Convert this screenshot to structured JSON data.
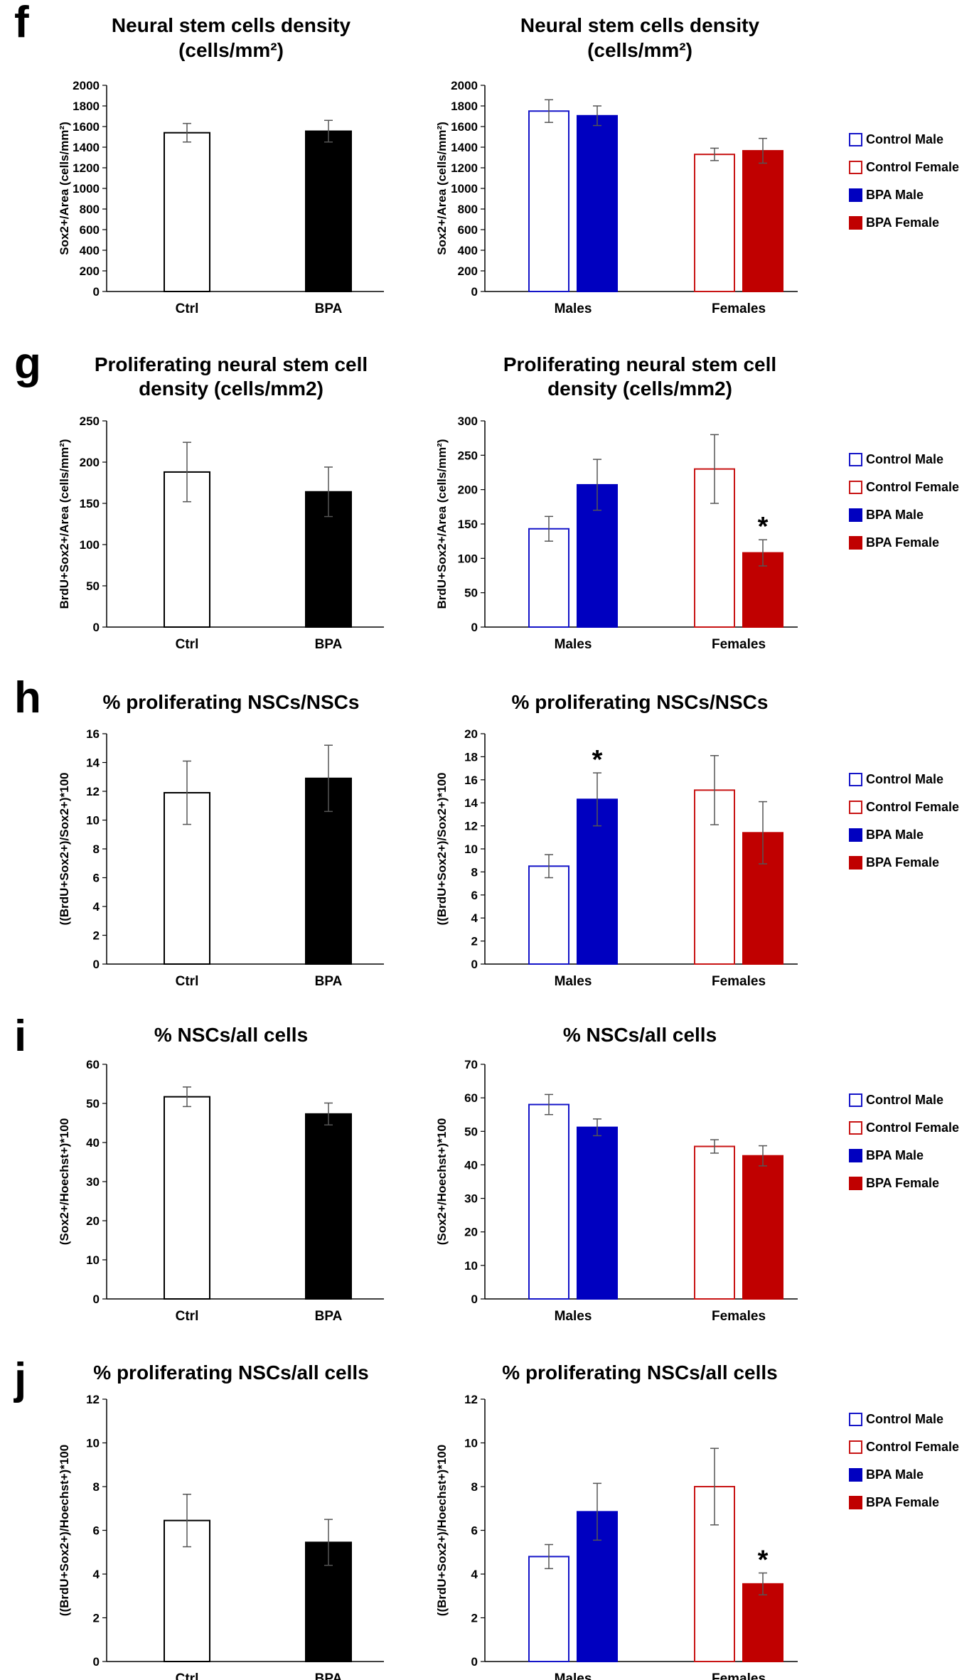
{
  "figure": {
    "colors": {
      "control_male": "#1414c8",
      "control_female": "#c81414",
      "bpa_male": "#0000c0",
      "bpa_female": "#c00000",
      "ctrl": "#000000",
      "bpa": "#000000",
      "axis": "#000000"
    },
    "legend": {
      "entries": [
        {
          "label": "Control Male",
          "series": "control_male",
          "filled": false
        },
        {
          "label": "Control Female",
          "series": "control_female",
          "filled": false
        },
        {
          "label": "BPA Male",
          "series": "bpa_male",
          "filled": true
        },
        {
          "label": "BPA Female",
          "series": "bpa_female",
          "filled": true
        }
      ]
    }
  },
  "chart_data": [
    {
      "panel": "f",
      "type": "bar",
      "layout": "simple",
      "title": [
        "Neural stem cells density",
        "(cells/mm²)"
      ],
      "ylabel": "Sox2+/Area (cells/mm²)",
      "ylim": [
        0,
        2000
      ],
      "yticks": [
        0,
        200,
        400,
        600,
        800,
        1000,
        1200,
        1400,
        1600,
        1800,
        2000
      ],
      "categories": [
        "Ctrl",
        "BPA"
      ],
      "values": [
        1540,
        1555
      ],
      "errors": [
        90,
        105
      ]
    },
    {
      "panel": "f",
      "type": "bar",
      "layout": "grouped",
      "title": [
        "Neural stem cells density",
        "(cells/mm²)"
      ],
      "ylabel": "Sox2+/Area (cells/mm²)",
      "ylim": [
        0,
        2000
      ],
      "yticks": [
        0,
        200,
        400,
        600,
        800,
        1000,
        1200,
        1400,
        1600,
        1800,
        2000
      ],
      "categories": [
        "Males",
        "Females"
      ],
      "series": [
        {
          "name": "Control",
          "values": [
            1750,
            1330
          ],
          "errors": [
            110,
            60
          ]
        },
        {
          "name": "BPA",
          "values": [
            1705,
            1365
          ],
          "errors": [
            95,
            120
          ]
        }
      ],
      "significance": []
    },
    {
      "panel": "g",
      "type": "bar",
      "layout": "simple",
      "title": [
        "Proliferating neural stem cell",
        "density (cells/mm2)"
      ],
      "ylabel": "BrdU+Sox2+/Area (cells/mm²)",
      "ylim": [
        0,
        250
      ],
      "yticks": [
        0,
        50,
        100,
        150,
        200,
        250
      ],
      "categories": [
        "Ctrl",
        "BPA"
      ],
      "values": [
        188,
        164
      ],
      "errors": [
        36,
        30
      ]
    },
    {
      "panel": "g",
      "type": "bar",
      "layout": "grouped",
      "title": [
        "Proliferating neural stem cell",
        "density (cells/mm2)"
      ],
      "ylabel": "BrdU+Sox2+/Area (cells/mm²)",
      "ylim": [
        0,
        300
      ],
      "yticks": [
        0,
        50,
        100,
        150,
        200,
        250,
        300
      ],
      "categories": [
        "Males",
        "Females"
      ],
      "series": [
        {
          "name": "Control",
          "values": [
            143,
            230
          ],
          "errors": [
            18,
            50
          ]
        },
        {
          "name": "BPA",
          "values": [
            207,
            108
          ],
          "errors": [
            37,
            19
          ]
        }
      ],
      "significance": [
        {
          "group": 1,
          "series": 1,
          "label": "*"
        }
      ]
    },
    {
      "panel": "h",
      "type": "bar",
      "layout": "simple",
      "title": [
        "% proliferating NSCs/NSCs"
      ],
      "ylabel": "((BrdU+Sox2+)/Sox2+)*100",
      "ylim": [
        0,
        16
      ],
      "yticks": [
        0,
        2,
        4,
        6,
        8,
        10,
        12,
        14,
        16
      ],
      "categories": [
        "Ctrl",
        "BPA"
      ],
      "values": [
        11.9,
        12.9
      ],
      "errors": [
        2.2,
        2.3
      ]
    },
    {
      "panel": "h",
      "type": "bar",
      "layout": "grouped",
      "title": [
        "% proliferating NSCs/NSCs"
      ],
      "ylabel": "((BrdU+Sox2+)/Sox2+)*100",
      "ylim": [
        0,
        20
      ],
      "yticks": [
        0,
        2,
        4,
        6,
        8,
        10,
        12,
        14,
        16,
        18,
        20
      ],
      "categories": [
        "Males",
        "Females"
      ],
      "series": [
        {
          "name": "Control",
          "values": [
            8.5,
            15.1
          ],
          "errors": [
            1.0,
            3.0
          ]
        },
        {
          "name": "BPA",
          "values": [
            14.3,
            11.4
          ],
          "errors": [
            2.3,
            2.7
          ]
        }
      ],
      "significance": [
        {
          "group": 0,
          "series": 1,
          "label": "*"
        }
      ]
    },
    {
      "panel": "i",
      "type": "bar",
      "layout": "simple",
      "title": [
        "% NSCs/all cells"
      ],
      "ylabel": "(Sox2+/Hoechst+)*100",
      "ylim": [
        0,
        60
      ],
      "yticks": [
        0,
        10,
        20,
        30,
        40,
        50,
        60
      ],
      "categories": [
        "Ctrl",
        "BPA"
      ],
      "values": [
        51.7,
        47.3
      ],
      "errors": [
        2.5,
        2.8
      ]
    },
    {
      "panel": "i",
      "type": "bar",
      "layout": "grouped",
      "title": [
        "% NSCs/all cells"
      ],
      "ylabel": "(Sox2+/Hoechst+)*100",
      "ylim": [
        0,
        70
      ],
      "yticks": [
        0,
        10,
        20,
        30,
        40,
        50,
        60,
        70
      ],
      "categories": [
        "Males",
        "Females"
      ],
      "series": [
        {
          "name": "Control",
          "values": [
            58,
            45.5
          ],
          "errors": [
            3,
            2
          ]
        },
        {
          "name": "BPA",
          "values": [
            51.2,
            42.7
          ],
          "errors": [
            2.5,
            3
          ]
        }
      ],
      "significance": []
    },
    {
      "panel": "j",
      "type": "bar",
      "layout": "simple",
      "title": [
        "% proliferating NSCs/all cells"
      ],
      "ylabel": "((BrdU+Sox2+)/Hoechst+)*100",
      "ylim": [
        0,
        12
      ],
      "yticks": [
        0,
        2,
        4,
        6,
        8,
        10,
        12
      ],
      "categories": [
        "Ctrl",
        "BPA"
      ],
      "values": [
        6.45,
        5.45
      ],
      "errors": [
        1.2,
        1.05
      ]
    },
    {
      "panel": "j",
      "type": "bar",
      "layout": "grouped",
      "title": [
        "% proliferating NSCs/all cells"
      ],
      "ylabel": "((BrdU+Sox2+)/Hoechst+)*100",
      "ylim": [
        0,
        12
      ],
      "yticks": [
        0,
        2,
        4,
        6,
        8,
        10,
        12
      ],
      "categories": [
        "Males",
        "Females"
      ],
      "series": [
        {
          "name": "Control",
          "values": [
            4.8,
            8.0
          ],
          "errors": [
            0.55,
            1.75
          ]
        },
        {
          "name": "BPA",
          "values": [
            6.85,
            3.55
          ],
          "errors": [
            1.3,
            0.5
          ]
        }
      ],
      "significance": [
        {
          "group": 1,
          "series": 1,
          "label": "*"
        }
      ]
    }
  ]
}
